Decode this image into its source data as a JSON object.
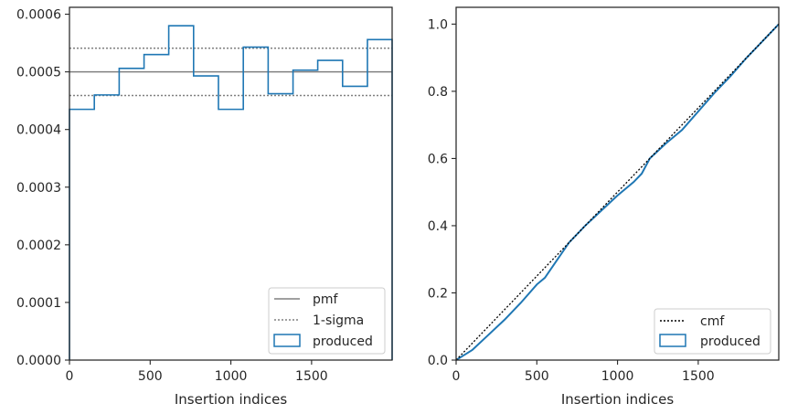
{
  "chart_data": [
    {
      "type": "step",
      "xlabel": "Insertion indices",
      "ylabel": "",
      "xlim": [
        0,
        1999
      ],
      "ylim": [
        0,
        0.000612
      ],
      "xticks": [
        0,
        500,
        1000,
        1500
      ],
      "xtick_labels": [
        "0",
        "500",
        "1000",
        "1500"
      ],
      "yticks": [
        0,
        0.0001,
        0.0002,
        0.0003,
        0.0004,
        0.0005,
        0.0006
      ],
      "ytick_labels": [
        "0.0000",
        "0.0001",
        "0.0002",
        "0.0003",
        "0.0004",
        "0.0005",
        "0.0006"
      ],
      "legend_position": "lower right",
      "legend": [
        "pmf",
        "1-sigma",
        "produced"
      ],
      "pmf": 0.0005,
      "sigma_band": [
        0.000459,
        0.000541
      ],
      "bin_edges": [
        0,
        154,
        308,
        462,
        615,
        769,
        923,
        1077,
        1231,
        1385,
        1538,
        1692,
        1846,
        1999
      ],
      "series": [
        {
          "name": "produced",
          "values": [
            0.000435,
            0.00046,
            0.000506,
            0.00053,
            0.00058,
            0.000493,
            0.000435,
            0.000543,
            0.000462,
            0.000503,
            0.00052,
            0.000475,
            0.000556
          ]
        }
      ],
      "colors": {
        "produced": "#1f77b4",
        "pmf": "#808080",
        "sigma": "#808080"
      }
    },
    {
      "type": "line",
      "xlabel": "Insertion indices",
      "ylabel": "",
      "xlim": [
        0,
        1999
      ],
      "ylim": [
        0,
        1.05
      ],
      "xticks": [
        0,
        500,
        1000,
        1500
      ],
      "xtick_labels": [
        "0",
        "500",
        "1000",
        "1500"
      ],
      "yticks": [
        0,
        0.2,
        0.4,
        0.6,
        0.8,
        1.0
      ],
      "ytick_labels": [
        "0.0",
        "0.2",
        "0.4",
        "0.6",
        "0.8",
        "1.0"
      ],
      "legend_position": "lower right",
      "legend": [
        "cmf",
        "produced"
      ],
      "series": [
        {
          "name": "cmf",
          "x": [
            0,
            1999
          ],
          "y": [
            0,
            1.0
          ]
        },
        {
          "name": "produced",
          "x": [
            0,
            100,
            200,
            300,
            400,
            500,
            550,
            600,
            700,
            800,
            900,
            1000,
            1100,
            1150,
            1200,
            1300,
            1400,
            1500,
            1600,
            1700,
            1800,
            1900,
            1999
          ],
          "y": [
            0,
            0.03,
            0.075,
            0.12,
            0.17,
            0.225,
            0.245,
            0.28,
            0.35,
            0.4,
            0.445,
            0.49,
            0.53,
            0.555,
            0.6,
            0.645,
            0.685,
            0.74,
            0.795,
            0.845,
            0.9,
            0.95,
            1.0
          ]
        }
      ],
      "colors": {
        "produced": "#1f77b4",
        "cmf": "#000000"
      }
    }
  ]
}
